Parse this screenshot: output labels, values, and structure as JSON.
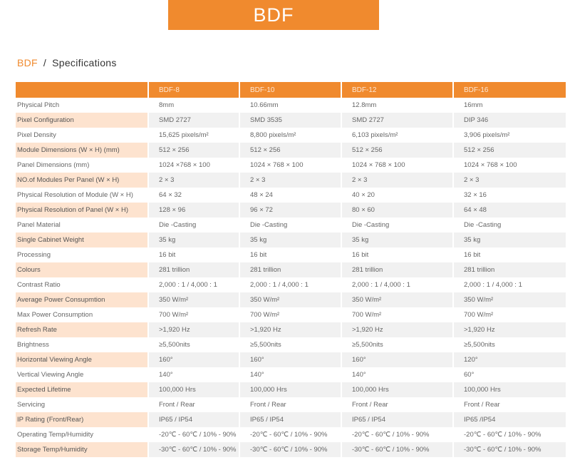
{
  "banner": {
    "title": "BDF"
  },
  "breadcrumb": {
    "brand": "BDF",
    "separator": "/",
    "page": "Specifications"
  },
  "table": {
    "headers": [
      "",
      "BDF-8",
      "BDF-10",
      "BDF-12",
      "BDF-16"
    ],
    "rows": [
      [
        "Physical Pitch",
        "8mm",
        "10.66mm",
        "12.8mm",
        "16mm"
      ],
      [
        "Pixel Configuration",
        "SMD 2727",
        "SMD 3535",
        "SMD 2727",
        "DIP 346"
      ],
      [
        "Pixel Density",
        "15,625 pixels/m²",
        "8,800 pixels/m²",
        "6,103 pixels/m²",
        "3,906 pixels/m²"
      ],
      [
        "Module Dimensions (W × H) (mm)",
        "512 × 256",
        "512 × 256",
        "512 × 256",
        "512 × 256"
      ],
      [
        "Panel Dimensions (mm)",
        "1024 ×768 × 100",
        "1024 × 768 × 100",
        "1024 × 768 × 100",
        "1024 × 768 × 100"
      ],
      [
        "NO.of Modules Per Panel (W × H)",
        "2 × 3",
        "2 × 3",
        "2 × 3",
        "2 × 3"
      ],
      [
        "Physical Resolution of Module (W × H)",
        "64 × 32",
        "48 × 24",
        "40 × 20",
        "32 × 16"
      ],
      [
        "Physical Resolution of Panel (W × H)",
        "128 × 96",
        "96 × 72",
        "80 × 60",
        "64 × 48"
      ],
      [
        "Panel Material",
        "Die -Casting",
        "Die -Casting",
        "Die -Casting",
        "Die -Casting"
      ],
      [
        "Single Cabinet Weight",
        "35 kg",
        "35 kg",
        "35 kg",
        "35 kg"
      ],
      [
        "Processing",
        "16 bit",
        "16 bit",
        "16 bit",
        "16 bit"
      ],
      [
        "Colours",
        "281 trillion",
        "281 trillion",
        "281 trillion",
        "281 trillion"
      ],
      [
        "Contrast Ratio",
        "2,000 : 1 / 4,000 : 1",
        "2,000 : 1 / 4,000 : 1",
        "2,000 : 1 / 4,000 : 1",
        "2,000 : 1 / 4,000 : 1"
      ],
      [
        "Average Power Consupmtion",
        "350 W/m²",
        "350 W/m²",
        "350 W/m²",
        "350 W/m²"
      ],
      [
        "Max Power Consumption",
        "700 W/m²",
        "700 W/m²",
        "700 W/m²",
        "700 W/m²"
      ],
      [
        "Refresh Rate",
        ">1,920 Hz",
        ">1,920 Hz",
        ">1,920 Hz",
        ">1,920 Hz"
      ],
      [
        "Brightness",
        "≥5,500nits",
        "≥5,500nits",
        "≥5,500nits",
        "≥5,500nits"
      ],
      [
        "Horizontal Viewing Angle",
        "160°",
        "160°",
        "160°",
        "120°"
      ],
      [
        "Vertical Viewing Angle",
        "140°",
        "140°",
        "140°",
        "60°"
      ],
      [
        "Expected Lifetime",
        "100,000 Hrs",
        "100,000 Hrs",
        "100,000 Hrs",
        "100,000 Hrs"
      ],
      [
        "Servicing",
        "Front / Rear",
        "Front / Rear",
        "Front / Rear",
        "Front / Rear"
      ],
      [
        "IP Rating (Front/Rear)",
        "IP65 / IP54",
        "IP65 / IP54",
        "IP65 / IP54",
        "IP65 /IP54"
      ],
      [
        "Operating Temp/Humidity",
        "-20℃ - 60℃ / 10% - 90%",
        "-20℃ - 60℃ / 10% - 90%",
        "-20℃ - 60℃ / 10% - 90%",
        "-20℃ - 60℃ / 10% - 90%"
      ],
      [
        "Storage Temp/Humidity",
        "-30℃ - 60℃ / 10% - 90%",
        "-30℃ - 60℃ / 10% - 90%",
        "-30℃ - 60℃ / 10% - 90%",
        "-30℃ - 60℃ / 10% - 90%"
      ]
    ],
    "alternate_rows": [
      1,
      3,
      5,
      7,
      9,
      11,
      13,
      15,
      17,
      19,
      21,
      23
    ]
  },
  "colors": {
    "accent": "#f08a2e",
    "label_highlight": "#fde3cf",
    "value_highlight": "#f1f1f1"
  }
}
